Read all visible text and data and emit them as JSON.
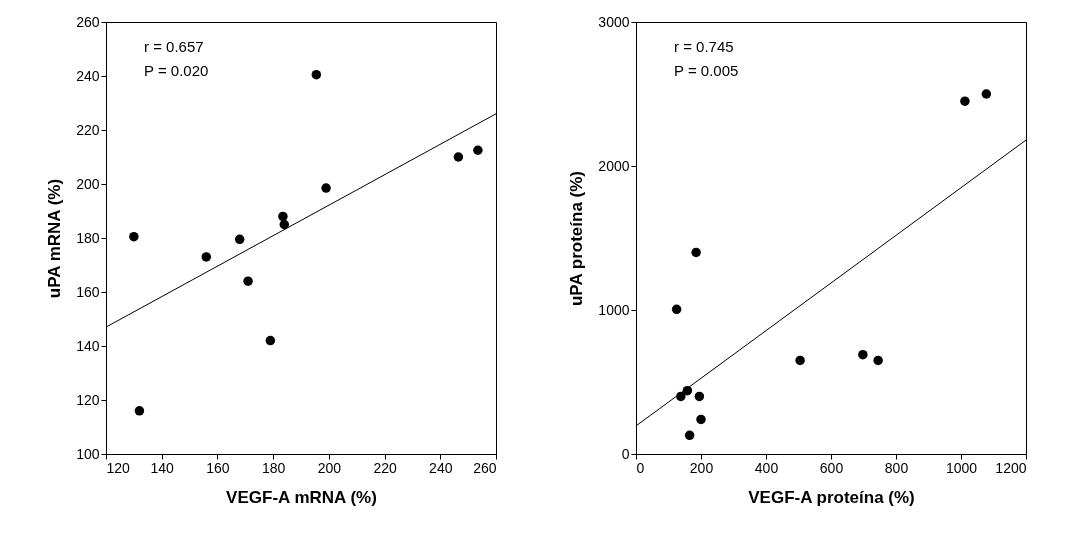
{
  "chart_data": [
    {
      "type": "scatter",
      "xlabel": "VEGF-A mRNA (%)",
      "ylabel": "uPA mRNA (%)",
      "xlim": [
        120,
        260
      ],
      "ylim": [
        100,
        260
      ],
      "xticks": [
        120,
        140,
        160,
        180,
        200,
        220,
        240,
        260
      ],
      "yticks": [
        100,
        120,
        140,
        160,
        180,
        200,
        220,
        240,
        260
      ],
      "grid": false,
      "annotations": [
        "r = 0.657",
        "P = 0.020"
      ],
      "series": [
        {
          "marker": "circle",
          "color": "#000000",
          "x": [
            130,
            132,
            156,
            168,
            171,
            179,
            183.5,
            184,
            195.5,
            199,
            246.5,
            253.5
          ],
          "values": [
            180.5,
            116,
            173,
            179.5,
            164,
            142,
            188,
            185,
            240.5,
            198.5,
            210,
            212.5
          ]
        },
        {
          "type": "line",
          "marker": "none",
          "color": "#000000",
          "x": [
            120,
            260
          ],
          "values": [
            147,
            226
          ]
        }
      ]
    },
    {
      "type": "scatter",
      "xlabel": "VEGF-A proteína (%)",
      "ylabel": "uPA proteína (%)",
      "xlim": [
        0,
        1200
      ],
      "ylim": [
        0,
        3000
      ],
      "xticks": [
        0,
        200,
        400,
        600,
        800,
        1000,
        1200
      ],
      "yticks": [
        0,
        1000,
        2000,
        3000
      ],
      "grid": false,
      "annotations": [
        "r = 0.745",
        "P = 0.005"
      ],
      "series": [
        {
          "marker": "circle",
          "color": "#000000",
          "x": [
            125,
            138,
            158,
            165,
            185,
            195,
            200,
            505,
            698,
            745,
            1012,
            1078
          ],
          "values": [
            1005,
            400,
            440,
            130,
            1400,
            400,
            240,
            650,
            690,
            650,
            2450,
            2500
          ]
        },
        {
          "type": "line",
          "marker": "none",
          "color": "#000000",
          "x": [
            0,
            1200
          ],
          "values": [
            195,
            2180
          ]
        }
      ]
    }
  ]
}
